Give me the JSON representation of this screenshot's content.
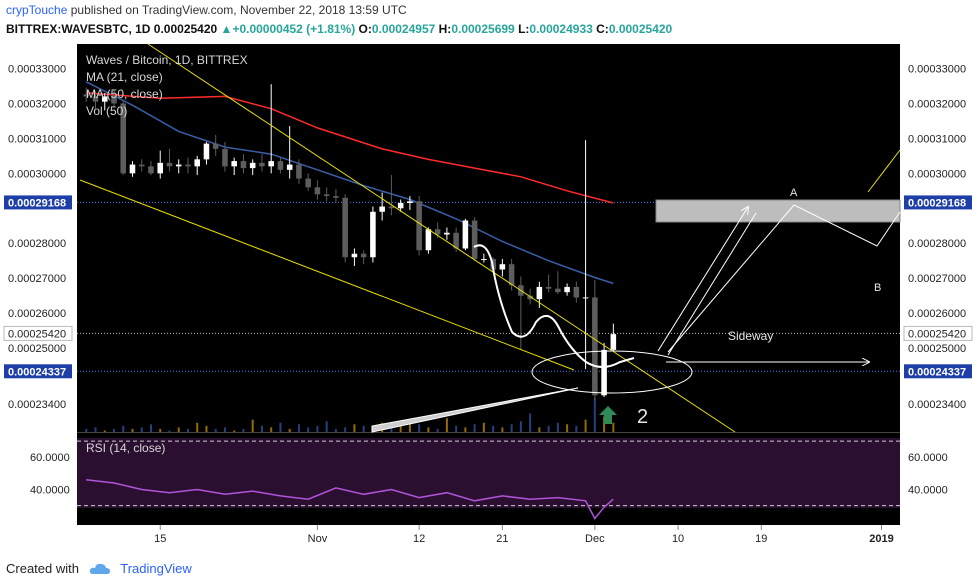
{
  "header": {
    "user": "crypTouche",
    "published_text": "published on TradingView.com, November 22, 2018 13:59 UTC",
    "symbol": "BITTREX:WAVESBTC, 1D",
    "last": "0.00025420",
    "change": "+0.00000452 (+1.81%)",
    "o_label": "O:",
    "o_value": "0.00024957",
    "h_label": "H:",
    "h_value": "0.00025699",
    "l_label": "L:",
    "l_value": "0.00024933",
    "c_label": "C:",
    "c_value": "0.00025420"
  },
  "legend": {
    "title": "Waves / Bitcoin, 1D, BITTREX",
    "ma21": "MA (21, close)",
    "ma50": "MA (50, close)",
    "vol": "Vol (50)",
    "rsi": "RSI (14, close)"
  },
  "annotations": {
    "sideway": "Sideway",
    "point_a": "A",
    "point_b": "B",
    "count": "2"
  },
  "footer": {
    "created_with": "Created with",
    "brand": "TradingView"
  },
  "colors": {
    "background": "#000000",
    "bull": "#ffffff",
    "bear": "#5d5d5d",
    "ma21": "#ff2b2b",
    "ma50": "#3a5fa8",
    "trendline": "#e8e000",
    "rsi_line": "#b054d8",
    "rsi_band": "#2b0f30",
    "dotted_blue": "#3f7bff",
    "badge": "#1f3fa8",
    "arrow_green": "#2e8b57"
  },
  "chart_data": {
    "type": "candlestick",
    "price_axis": {
      "tick_labels": [
        "0.00033000",
        "0.00032000",
        "0.00031000",
        "0.00030000",
        "0.00029168",
        "0.00028000",
        "0.00027000",
        "0.00026000",
        "0.00025420",
        "0.00025000",
        "0.00024337",
        "0.00023400"
      ],
      "range": [
        0.000226,
        0.000337
      ]
    },
    "highlighted_levels": [
      {
        "value": 0.00029168,
        "label": "0.00029168"
      },
      {
        "value": 0.00024337,
        "label": "0.00024337"
      },
      {
        "value": 0.0002542,
        "label": "0.00025420"
      }
    ],
    "x_axis": {
      "tick_labels": [
        "15",
        "Nov",
        "12",
        "21",
        "Dec",
        "10",
        "19",
        "2019"
      ],
      "tick_dates": [
        "2018-10-15",
        "2018-11-01",
        "2018-11-12",
        "2018-11-21",
        "2018-12-01",
        "2018-12-10",
        "2018-12-19",
        "2019-01-01"
      ],
      "start_date": "2018-10-06",
      "end_date": "2019-01-03"
    },
    "candles": [
      {
        "date": "2018-10-07",
        "o": 0.0003226,
        "h": 0.0003245,
        "l": 0.0003205,
        "c": 0.000322
      },
      {
        "date": "2018-10-08",
        "o": 0.000322,
        "h": 0.0003235,
        "l": 0.0003185,
        "c": 0.0003205
      },
      {
        "date": "2018-10-09",
        "o": 0.0003205,
        "h": 0.000323,
        "l": 0.000318,
        "c": 0.000322
      },
      {
        "date": "2018-10-10",
        "o": 0.000322,
        "h": 0.000324,
        "l": 0.000319,
        "c": 0.00032
      },
      {
        "date": "2018-10-11",
        "o": 0.00032,
        "h": 0.000321,
        "l": 0.0002995,
        "c": 0.0003
      },
      {
        "date": "2018-10-12",
        "o": 0.0003,
        "h": 0.0003035,
        "l": 0.000299,
        "c": 0.0003025
      },
      {
        "date": "2018-10-13",
        "o": 0.0003025,
        "h": 0.000304,
        "l": 0.0003005,
        "c": 0.000302
      },
      {
        "date": "2018-10-14",
        "o": 0.000302,
        "h": 0.0003035,
        "l": 0.0002995,
        "c": 0.0003
      },
      {
        "date": "2018-10-15",
        "o": 0.0003,
        "h": 0.0003065,
        "l": 0.0002985,
        "c": 0.000303
      },
      {
        "date": "2018-10-16",
        "o": 0.000303,
        "h": 0.000307,
        "l": 0.0003005,
        "c": 0.000302
      },
      {
        "date": "2018-10-17",
        "o": 0.000302,
        "h": 0.000304,
        "l": 0.0003,
        "c": 0.0003025
      },
      {
        "date": "2018-10-18",
        "o": 0.0003025,
        "h": 0.0003045,
        "l": 0.0003,
        "c": 0.000302
      },
      {
        "date": "2018-10-19",
        "o": 0.000302,
        "h": 0.000305,
        "l": 0.0002995,
        "c": 0.000304
      },
      {
        "date": "2018-10-20",
        "o": 0.000304,
        "h": 0.000309,
        "l": 0.0003025,
        "c": 0.0003085
      },
      {
        "date": "2018-10-21",
        "o": 0.0003085,
        "h": 0.000311,
        "l": 0.000305,
        "c": 0.000307
      },
      {
        "date": "2018-10-22",
        "o": 0.000307,
        "h": 0.000309,
        "l": 0.0003005,
        "c": 0.000302
      },
      {
        "date": "2018-10-23",
        "o": 0.000302,
        "h": 0.0003045,
        "l": 0.0002995,
        "c": 0.0003035
      },
      {
        "date": "2018-10-24",
        "o": 0.0003035,
        "h": 0.0003055,
        "l": 0.0003,
        "c": 0.0003015
      },
      {
        "date": "2018-10-25",
        "o": 0.0003015,
        "h": 0.000304,
        "l": 0.0002995,
        "c": 0.000303
      },
      {
        "date": "2018-10-26",
        "o": 0.000303,
        "h": 0.0003055,
        "l": 0.0003005,
        "c": 0.000302
      },
      {
        "date": "2018-10-27",
        "o": 0.000302,
        "h": 0.0003255,
        "l": 0.0003,
        "c": 0.0003035
      },
      {
        "date": "2018-10-28",
        "o": 0.0003035,
        "h": 0.0003045,
        "l": 0.0003,
        "c": 0.000301
      },
      {
        "date": "2018-10-29",
        "o": 0.000301,
        "h": 0.0003135,
        "l": 0.0002985,
        "c": 0.0003025
      },
      {
        "date": "2018-10-30",
        "o": 0.0003025,
        "h": 0.000304,
        "l": 0.000297,
        "c": 0.0002985
      },
      {
        "date": "2018-10-31",
        "o": 0.0002985,
        "h": 0.0003,
        "l": 0.000295,
        "c": 0.000296
      },
      {
        "date": "2018-11-01",
        "o": 0.000296,
        "h": 0.000298,
        "l": 0.0002925,
        "c": 0.000294
      },
      {
        "date": "2018-11-02",
        "o": 0.000294,
        "h": 0.000296,
        "l": 0.000292,
        "c": 0.0002935
      },
      {
        "date": "2018-11-03",
        "o": 0.0002935,
        "h": 0.0002955,
        "l": 0.0002915,
        "c": 0.000293
      },
      {
        "date": "2018-11-04",
        "o": 0.000293,
        "h": 0.000294,
        "l": 0.0002745,
        "c": 0.000276
      },
      {
        "date": "2018-11-05",
        "o": 0.000276,
        "h": 0.0002785,
        "l": 0.0002735,
        "c": 0.000277
      },
      {
        "date": "2018-11-06",
        "o": 0.000277,
        "h": 0.000278,
        "l": 0.000274,
        "c": 0.000276
      },
      {
        "date": "2018-11-07",
        "o": 0.000276,
        "h": 0.0002905,
        "l": 0.0002745,
        "c": 0.000289
      },
      {
        "date": "2018-11-08",
        "o": 0.000289,
        "h": 0.0002945,
        "l": 0.0002865,
        "c": 0.0002905
      },
      {
        "date": "2018-11-09",
        "o": 0.0002905,
        "h": 0.0002995,
        "l": 0.000288,
        "c": 0.00029
      },
      {
        "date": "2018-11-10",
        "o": 0.00029,
        "h": 0.0002925,
        "l": 0.000289,
        "c": 0.0002915
      },
      {
        "date": "2018-11-11",
        "o": 0.0002915,
        "h": 0.0002935,
        "l": 0.0002895,
        "c": 0.000292
      },
      {
        "date": "2018-11-12",
        "o": 0.000292,
        "h": 0.0002935,
        "l": 0.0002765,
        "c": 0.000278
      },
      {
        "date": "2018-11-13",
        "o": 0.000278,
        "h": 0.0002845,
        "l": 0.000277,
        "c": 0.000284
      },
      {
        "date": "2018-11-14",
        "o": 0.000284,
        "h": 0.000286,
        "l": 0.0002815,
        "c": 0.0002825
      },
      {
        "date": "2018-11-15",
        "o": 0.0002825,
        "h": 0.0002845,
        "l": 0.000281,
        "c": 0.000283
      },
      {
        "date": "2018-11-16",
        "o": 0.000283,
        "h": 0.0002845,
        "l": 0.0002775,
        "c": 0.0002785
      },
      {
        "date": "2018-11-17",
        "o": 0.0002785,
        "h": 0.000287,
        "l": 0.000278,
        "c": 0.0002865
      },
      {
        "date": "2018-11-18",
        "o": 0.0002865,
        "h": 0.0002875,
        "l": 0.000275,
        "c": 0.0002755
      },
      {
        "date": "2018-11-19",
        "o": 0.0002755,
        "h": 0.000277,
        "l": 0.0002745,
        "c": 0.0002755
      },
      {
        "date": "2018-11-20",
        "o": 0.0002755,
        "h": 0.000276,
        "l": 0.0002715,
        "c": 0.0002725
      },
      {
        "date": "2018-11-21",
        "o": 0.0002725,
        "h": 0.0002755,
        "l": 0.0002705,
        "c": 0.000274
      },
      {
        "date": "2018-11-22",
        "o": 0.000274,
        "h": 0.0002755,
        "l": 0.0002665,
        "c": 0.000268
      },
      {
        "date": "2018-11-23",
        "o": 0.000268,
        "h": 0.0002705,
        "l": 0.0002495,
        "c": 0.000265
      },
      {
        "date": "2018-11-24",
        "o": 0.000265,
        "h": 0.000267,
        "l": 0.0002625,
        "c": 0.000264
      },
      {
        "date": "2018-11-25",
        "o": 0.000264,
        "h": 0.000269,
        "l": 0.0002615,
        "c": 0.0002675
      },
      {
        "date": "2018-11-26",
        "o": 0.0002675,
        "h": 0.000271,
        "l": 0.000266,
        "c": 0.000267
      },
      {
        "date": "2018-11-27",
        "o": 0.000267,
        "h": 0.000272,
        "l": 0.0002655,
        "c": 0.000266
      },
      {
        "date": "2018-11-28",
        "o": 0.000266,
        "h": 0.0002685,
        "l": 0.000265,
        "c": 0.0002675
      },
      {
        "date": "2018-11-29",
        "o": 0.0002675,
        "h": 0.000269,
        "l": 0.000263,
        "c": 0.0002645
      },
      {
        "date": "2018-11-30",
        "o": 0.0002645,
        "h": 0.0003095,
        "l": 0.000244,
        "c": 0.0002645
      },
      {
        "date": "2018-12-01",
        "o": 0.0002645,
        "h": 0.0002695,
        "l": 0.000235,
        "c": 0.0002365
      },
      {
        "date": "2018-12-02",
        "o": 0.0002365,
        "h": 0.0002515,
        "l": 0.000236,
        "c": 0.0002495
      },
      {
        "date": "2018-12-03",
        "o": 0.0002495,
        "h": 0.000257,
        "l": 0.0002493,
        "c": 0.000254
      }
    ],
    "ma21": [
      {
        "date": "2018-10-07",
        "v": 0.000323
      },
      {
        "date": "2018-10-15",
        "v": 0.0003215
      },
      {
        "date": "2018-10-22",
        "v": 0.000322
      },
      {
        "date": "2018-10-27",
        "v": 0.0003185
      },
      {
        "date": "2018-11-01",
        "v": 0.000313
      },
      {
        "date": "2018-11-08",
        "v": 0.000307
      },
      {
        "date": "2018-11-13",
        "v": 0.000304
      },
      {
        "date": "2018-11-18",
        "v": 0.0003015
      },
      {
        "date": "2018-11-23",
        "v": 0.000299
      },
      {
        "date": "2018-11-28",
        "v": 0.000295
      },
      {
        "date": "2018-12-03",
        "v": 0.0002915
      }
    ],
    "ma50": [
      {
        "date": "2018-10-07",
        "v": 0.0003262
      },
      {
        "date": "2018-10-12",
        "v": 0.0003195
      },
      {
        "date": "2018-10-17",
        "v": 0.000312
      },
      {
        "date": "2018-10-22",
        "v": 0.0003075
      },
      {
        "date": "2018-10-27",
        "v": 0.0003055
      },
      {
        "date": "2018-11-01",
        "v": 0.000301
      },
      {
        "date": "2018-11-06",
        "v": 0.0002965
      },
      {
        "date": "2018-11-11",
        "v": 0.0002925
      },
      {
        "date": "2018-11-16",
        "v": 0.000287
      },
      {
        "date": "2018-11-21",
        "v": 0.0002805
      },
      {
        "date": "2018-11-26",
        "v": 0.000275
      },
      {
        "date": "2018-12-01",
        "v": 0.0002702
      },
      {
        "date": "2018-12-03",
        "v": 0.0002685
      }
    ],
    "rsi": {
      "ticks": [
        "60.0000",
        "40.0000"
      ],
      "range": [
        18,
        75
      ],
      "overbought": 70,
      "oversold": 30,
      "values": [
        {
          "date": "2018-10-07",
          "v": 46
        },
        {
          "date": "2018-10-10",
          "v": 44
        },
        {
          "date": "2018-10-13",
          "v": 40
        },
        {
          "date": "2018-10-16",
          "v": 38
        },
        {
          "date": "2018-10-19",
          "v": 40
        },
        {
          "date": "2018-10-22",
          "v": 37
        },
        {
          "date": "2018-10-25",
          "v": 39
        },
        {
          "date": "2018-10-28",
          "v": 36
        },
        {
          "date": "2018-10-31",
          "v": 34
        },
        {
          "date": "2018-11-03",
          "v": 41
        },
        {
          "date": "2018-11-06",
          "v": 37
        },
        {
          "date": "2018-11-09",
          "v": 40
        },
        {
          "date": "2018-11-12",
          "v": 35
        },
        {
          "date": "2018-11-15",
          "v": 38
        },
        {
          "date": "2018-11-18",
          "v": 33
        },
        {
          "date": "2018-11-21",
          "v": 36
        },
        {
          "date": "2018-11-24",
          "v": 34
        },
        {
          "date": "2018-11-27",
          "v": 35
        },
        {
          "date": "2018-11-30",
          "v": 33
        },
        {
          "date": "2018-12-01",
          "v": 22
        },
        {
          "date": "2018-12-02",
          "v": 29
        },
        {
          "date": "2018-12-03",
          "v": 34
        }
      ]
    },
    "volume": {
      "values": [
        2,
        3,
        1,
        2,
        4,
        2,
        3,
        5,
        2,
        1,
        3,
        2,
        6,
        4,
        2,
        3,
        1,
        2,
        8,
        4,
        3,
        6,
        2,
        5,
        3,
        4,
        7,
        2,
        3,
        5,
        4,
        2,
        6,
        3,
        4,
        8,
        5,
        3,
        2,
        9,
        4,
        3,
        5,
        6,
        4,
        3,
        5,
        7,
        12,
        3,
        4,
        6,
        5,
        4,
        8,
        22,
        10,
        6
      ],
      "unit": "relative"
    }
  }
}
